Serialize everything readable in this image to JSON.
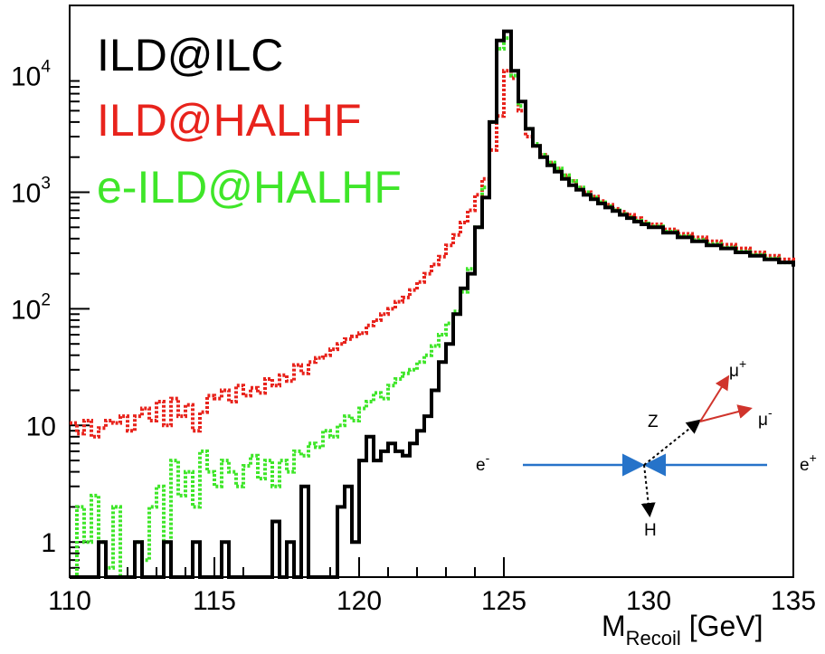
{
  "chart_data": {
    "type": "line",
    "title": "",
    "xlabel": "M",
    "xlabel_sub": "Recoil",
    "xlabel_unit": " [GeV]",
    "xlim": [
      110,
      135
    ],
    "ylim": [
      0.5,
      40000
    ],
    "y_scale": "log",
    "grid": false,
    "legend_placement": "top-left",
    "x_ticks": [
      {
        "value": 110,
        "label": "110"
      },
      {
        "value": 115,
        "label": "115"
      },
      {
        "value": 120,
        "label": "120"
      },
      {
        "value": 125,
        "label": "125"
      },
      {
        "value": 130,
        "label": "130"
      },
      {
        "value": 135,
        "label": "135"
      }
    ],
    "y_ticks": [
      {
        "value": 1,
        "label": "1",
        "exp": ""
      },
      {
        "value": 10,
        "label": "10",
        "exp": ""
      },
      {
        "value": 100,
        "label": "10",
        "exp": "2"
      },
      {
        "value": 1000,
        "label": "10",
        "exp": "3"
      },
      {
        "value": 10000,
        "label": "10",
        "exp": "4"
      }
    ],
    "series": [
      {
        "name": "ILD@HALHF",
        "color": "#e8231c",
        "style": "dotted",
        "points": [
          [
            110.0,
            10.5
          ],
          [
            110.25,
            8.5
          ],
          [
            110.5,
            11
          ],
          [
            110.75,
            8
          ],
          [
            111.0,
            9.5
          ],
          [
            111.25,
            11
          ],
          [
            111.5,
            10.5
          ],
          [
            111.75,
            12
          ],
          [
            112.0,
            9
          ],
          [
            112.25,
            12
          ],
          [
            112.5,
            14
          ],
          [
            112.75,
            11
          ],
          [
            113.0,
            16
          ],
          [
            113.25,
            10
          ],
          [
            113.5,
            17
          ],
          [
            113.75,
            12
          ],
          [
            114.0,
            15
          ],
          [
            114.25,
            9
          ],
          [
            114.5,
            13
          ],
          [
            114.75,
            18
          ],
          [
            115.0,
            17
          ],
          [
            115.25,
            20
          ],
          [
            115.5,
            16
          ],
          [
            115.75,
            22
          ],
          [
            116.0,
            18
          ],
          [
            116.25,
            21
          ],
          [
            116.5,
            19
          ],
          [
            116.75,
            25
          ],
          [
            117.0,
            22
          ],
          [
            117.25,
            27
          ],
          [
            117.5,
            24
          ],
          [
            117.75,
            33
          ],
          [
            118.0,
            28
          ],
          [
            118.25,
            35
          ],
          [
            118.5,
            38
          ],
          [
            118.75,
            40
          ],
          [
            119.0,
            45
          ],
          [
            119.25,
            50
          ],
          [
            119.5,
            55
          ],
          [
            119.75,
            58
          ],
          [
            120.0,
            62
          ],
          [
            120.25,
            72
          ],
          [
            120.5,
            80
          ],
          [
            120.75,
            90
          ],
          [
            121.0,
            100
          ],
          [
            121.25,
            115
          ],
          [
            121.5,
            125
          ],
          [
            121.75,
            145
          ],
          [
            122.0,
            170
          ],
          [
            122.25,
            200
          ],
          [
            122.5,
            240
          ],
          [
            122.75,
            280
          ],
          [
            123.0,
            350
          ],
          [
            123.25,
            430
          ],
          [
            123.5,
            550
          ],
          [
            123.75,
            700
          ],
          [
            124.0,
            950
          ],
          [
            124.25,
            1300
          ],
          [
            124.5,
            2300
          ],
          [
            124.75,
            4500
          ],
          [
            125.0,
            11000
          ],
          [
            125.25,
            9500
          ],
          [
            125.5,
            5000
          ],
          [
            125.75,
            3000
          ],
          [
            126.0,
            2500
          ],
          [
            126.25,
            2100
          ],
          [
            126.5,
            1800
          ],
          [
            126.75,
            1600
          ],
          [
            127.0,
            1400
          ],
          [
            127.25,
            1250
          ],
          [
            127.5,
            1100
          ],
          [
            127.75,
            1000
          ],
          [
            128.0,
            920
          ],
          [
            128.25,
            840
          ],
          [
            128.5,
            780
          ],
          [
            128.75,
            720
          ],
          [
            129.0,
            680
          ],
          [
            129.25,
            640
          ],
          [
            129.5,
            600
          ],
          [
            129.75,
            560
          ],
          [
            130.0,
            530
          ],
          [
            130.5,
            480
          ],
          [
            131.0,
            440
          ],
          [
            131.5,
            410
          ],
          [
            132.0,
            380
          ],
          [
            132.5,
            355
          ],
          [
            133.0,
            330
          ],
          [
            133.5,
            305
          ],
          [
            134.0,
            285
          ],
          [
            134.5,
            265
          ],
          [
            135.0,
            245
          ]
        ]
      },
      {
        "name": "e-ILD@HALHF",
        "color": "#3fe629",
        "style": "dotted",
        "points": [
          [
            110.0,
            0.5
          ],
          [
            110.25,
            2
          ],
          [
            110.5,
            1
          ],
          [
            110.75,
            2.5
          ],
          [
            111.0,
            1
          ],
          [
            111.25,
            0.6
          ],
          [
            111.5,
            2
          ],
          [
            111.75,
            0.5
          ],
          [
            112.0,
            0.5
          ],
          [
            112.25,
            1
          ],
          [
            112.5,
            0.7
          ],
          [
            112.75,
            2
          ],
          [
            113.0,
            3
          ],
          [
            113.25,
            1
          ],
          [
            113.5,
            5
          ],
          [
            113.75,
            2.5
          ],
          [
            114.0,
            4
          ],
          [
            114.25,
            2
          ],
          [
            114.5,
            6
          ],
          [
            114.75,
            4
          ],
          [
            115.0,
            3
          ],
          [
            115.25,
            5
          ],
          [
            115.5,
            4
          ],
          [
            115.75,
            3
          ],
          [
            116.0,
            4.5
          ],
          [
            116.25,
            5.5
          ],
          [
            116.5,
            3.5
          ],
          [
            116.75,
            5
          ],
          [
            117.0,
            3
          ],
          [
            117.25,
            5
          ],
          [
            117.5,
            4
          ],
          [
            117.75,
            6
          ],
          [
            118.0,
            5.5
          ],
          [
            118.25,
            7
          ],
          [
            118.5,
            6.5
          ],
          [
            118.75,
            9
          ],
          [
            119.0,
            8
          ],
          [
            119.25,
            10
          ],
          [
            119.5,
            12
          ],
          [
            119.75,
            11
          ],
          [
            120.0,
            14
          ],
          [
            120.25,
            16
          ],
          [
            120.5,
            19
          ],
          [
            120.75,
            17
          ],
          [
            121.0,
            22
          ],
          [
            121.25,
            25
          ],
          [
            121.5,
            28
          ],
          [
            121.75,
            30
          ],
          [
            122.0,
            35
          ],
          [
            122.25,
            40
          ],
          [
            122.5,
            48
          ],
          [
            122.75,
            60
          ],
          [
            123.0,
            75
          ],
          [
            123.25,
            95
          ],
          [
            123.5,
            140
          ],
          [
            123.75,
            220
          ],
          [
            124.0,
            500
          ],
          [
            124.25,
            1100
          ],
          [
            124.5,
            4000
          ],
          [
            124.75,
            17000
          ],
          [
            125.0,
            21000
          ],
          [
            125.25,
            10000
          ],
          [
            125.5,
            5500
          ],
          [
            125.75,
            3500
          ],
          [
            126.0,
            2600
          ],
          [
            126.25,
            2100
          ],
          [
            126.5,
            1800
          ],
          [
            126.75,
            1600
          ],
          [
            127.0,
            1400
          ],
          [
            127.25,
            1250
          ],
          [
            127.5,
            1100
          ],
          [
            127.75,
            1000
          ],
          [
            128.0,
            900
          ],
          [
            128.25,
            820
          ],
          [
            128.5,
            760
          ],
          [
            128.75,
            700
          ],
          [
            129.0,
            650
          ],
          [
            129.25,
            610
          ],
          [
            129.5,
            570
          ],
          [
            129.75,
            540
          ],
          [
            130.0,
            510
          ],
          [
            130.5,
            460
          ],
          [
            131.0,
            420
          ],
          [
            131.5,
            390
          ],
          [
            132.0,
            360
          ],
          [
            132.5,
            335
          ],
          [
            133.0,
            310
          ],
          [
            133.5,
            290
          ],
          [
            134.0,
            270
          ],
          [
            134.5,
            250
          ],
          [
            135.0,
            235
          ]
        ]
      },
      {
        "name": "ILD@ILC",
        "color": "#000000",
        "style": "solid",
        "points": [
          [
            110.0,
            0.5
          ],
          [
            110.5,
            0.5
          ],
          [
            111.0,
            1
          ],
          [
            111.25,
            0.5
          ],
          [
            112.0,
            0.5
          ],
          [
            112.25,
            1
          ],
          [
            112.5,
            0.5
          ],
          [
            113.0,
            0.5
          ],
          [
            113.25,
            1
          ],
          [
            113.5,
            0.5
          ],
          [
            114.0,
            0.5
          ],
          [
            114.25,
            1
          ],
          [
            114.5,
            0.5
          ],
          [
            115.0,
            0.5
          ],
          [
            115.25,
            1
          ],
          [
            115.5,
            0.5
          ],
          [
            117.0,
            1.5
          ],
          [
            117.25,
            0.5
          ],
          [
            117.5,
            1
          ],
          [
            117.75,
            0.5
          ],
          [
            118.0,
            3
          ],
          [
            118.25,
            0.5
          ],
          [
            119.0,
            0.5
          ],
          [
            119.25,
            2
          ],
          [
            119.5,
            3
          ],
          [
            119.75,
            1
          ],
          [
            120.0,
            5
          ],
          [
            120.25,
            8
          ],
          [
            120.5,
            5
          ],
          [
            120.75,
            6
          ],
          [
            121.0,
            7
          ],
          [
            121.25,
            6
          ],
          [
            121.5,
            5.5
          ],
          [
            121.75,
            7
          ],
          [
            122.0,
            9
          ],
          [
            122.25,
            12
          ],
          [
            122.5,
            20
          ],
          [
            122.75,
            35
          ],
          [
            123.0,
            50
          ],
          [
            123.25,
            90
          ],
          [
            123.5,
            150
          ],
          [
            123.75,
            200
          ],
          [
            124.0,
            500
          ],
          [
            124.25,
            900
          ],
          [
            124.5,
            4000
          ],
          [
            124.75,
            20000
          ],
          [
            125.0,
            24000
          ],
          [
            125.25,
            11000
          ],
          [
            125.5,
            6000
          ],
          [
            125.75,
            3500
          ],
          [
            126.0,
            2500
          ],
          [
            126.25,
            2000
          ],
          [
            126.5,
            1700
          ],
          [
            126.75,
            1500
          ],
          [
            127.0,
            1300
          ],
          [
            127.25,
            1150
          ],
          [
            127.5,
            1050
          ],
          [
            127.75,
            950
          ],
          [
            128.0,
            870
          ],
          [
            128.25,
            800
          ],
          [
            128.5,
            740
          ],
          [
            128.75,
            690
          ],
          [
            129.0,
            640
          ],
          [
            129.25,
            600
          ],
          [
            129.5,
            560
          ],
          [
            129.75,
            530
          ],
          [
            130.0,
            500
          ],
          [
            130.5,
            450
          ],
          [
            131.0,
            410
          ],
          [
            131.5,
            380
          ],
          [
            132.0,
            350
          ],
          [
            132.5,
            330
          ],
          [
            133.0,
            305
          ],
          [
            133.5,
            285
          ],
          [
            134.0,
            265
          ],
          [
            134.5,
            250
          ],
          [
            135.0,
            230
          ]
        ]
      }
    ],
    "inset_diagram": {
      "labels": {
        "e_minus": "e",
        "e_minus_sup": "-",
        "e_plus": "e",
        "e_plus_sup": "+",
        "z": "Z",
        "h": "H",
        "mu_plus": "μ",
        "mu_plus_sup": "+",
        "mu_minus": "μ",
        "mu_minus_sup": "-"
      },
      "beam_color": "#2673c9",
      "boson_color": "#000000",
      "muon_color": "#d0342c"
    }
  }
}
